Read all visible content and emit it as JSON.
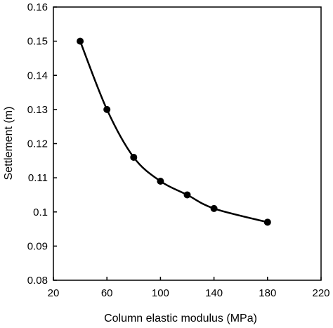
{
  "chart_data": {
    "type": "scatter",
    "title": "",
    "xlabel": "Column elastic modulus (MPa)",
    "ylabel": "Settlement (m)",
    "xlim": [
      20,
      220
    ],
    "ylim": [
      0.08,
      0.16
    ],
    "x_ticks": [
      "20",
      "60",
      "100",
      "140",
      "180",
      "220"
    ],
    "y_ticks": [
      "0.08",
      "0.09",
      "0.1",
      "0.11",
      "0.12",
      "0.13",
      "0.14",
      "0.15",
      "0.16"
    ],
    "grid": false,
    "legend": "none",
    "series": [
      {
        "x": [
          40,
          60,
          80,
          100,
          120,
          140,
          180
        ],
        "y": [
          0.15,
          0.13,
          0.116,
          0.109,
          0.105,
          0.101,
          0.097
        ],
        "line": "smooth",
        "marker": "filled-circle",
        "color": "#000000"
      }
    ]
  }
}
